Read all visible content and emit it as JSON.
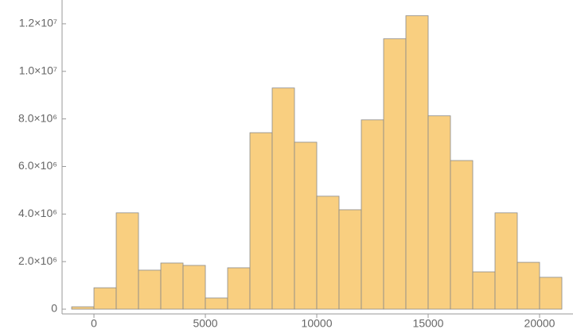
{
  "chart_data": {
    "type": "histogram",
    "bins": [
      -1000,
      0,
      1000,
      2000,
      3000,
      4000,
      5000,
      6000,
      7000,
      8000,
      9000,
      10000,
      11000,
      12000,
      13000,
      14000,
      15000,
      16000,
      17000,
      18000,
      19000,
      20000,
      21000
    ],
    "values": [
      100000,
      900000,
      4050000,
      1640000,
      1940000,
      1840000,
      470000,
      1740000,
      7420000,
      9300000,
      7020000,
      4750000,
      4180000,
      7960000,
      11370000,
      12340000,
      8130000,
      6250000,
      1570000,
      4050000,
      1970000,
      1340000
    ],
    "color": "#f9cf80",
    "xlim": [
      -1430,
      21500
    ],
    "ylim": [
      -200000,
      13000000
    ],
    "xticks": [
      0,
      5000,
      10000,
      15000,
      20000
    ],
    "yticks": [
      0,
      {
        "value": 2000000,
        "label": "2.0×10⁶"
      },
      {
        "value": 4000000,
        "label": "4.0×10⁶"
      },
      {
        "value": 6000000,
        "label": "6.0×10⁶"
      },
      {
        "value": 8000000,
        "label": "8.0×10⁶"
      },
      {
        "value": 10000000,
        "label": "1.0×10⁷"
      },
      {
        "value": 12000000,
        "label": "1.2×10⁷"
      }
    ]
  }
}
